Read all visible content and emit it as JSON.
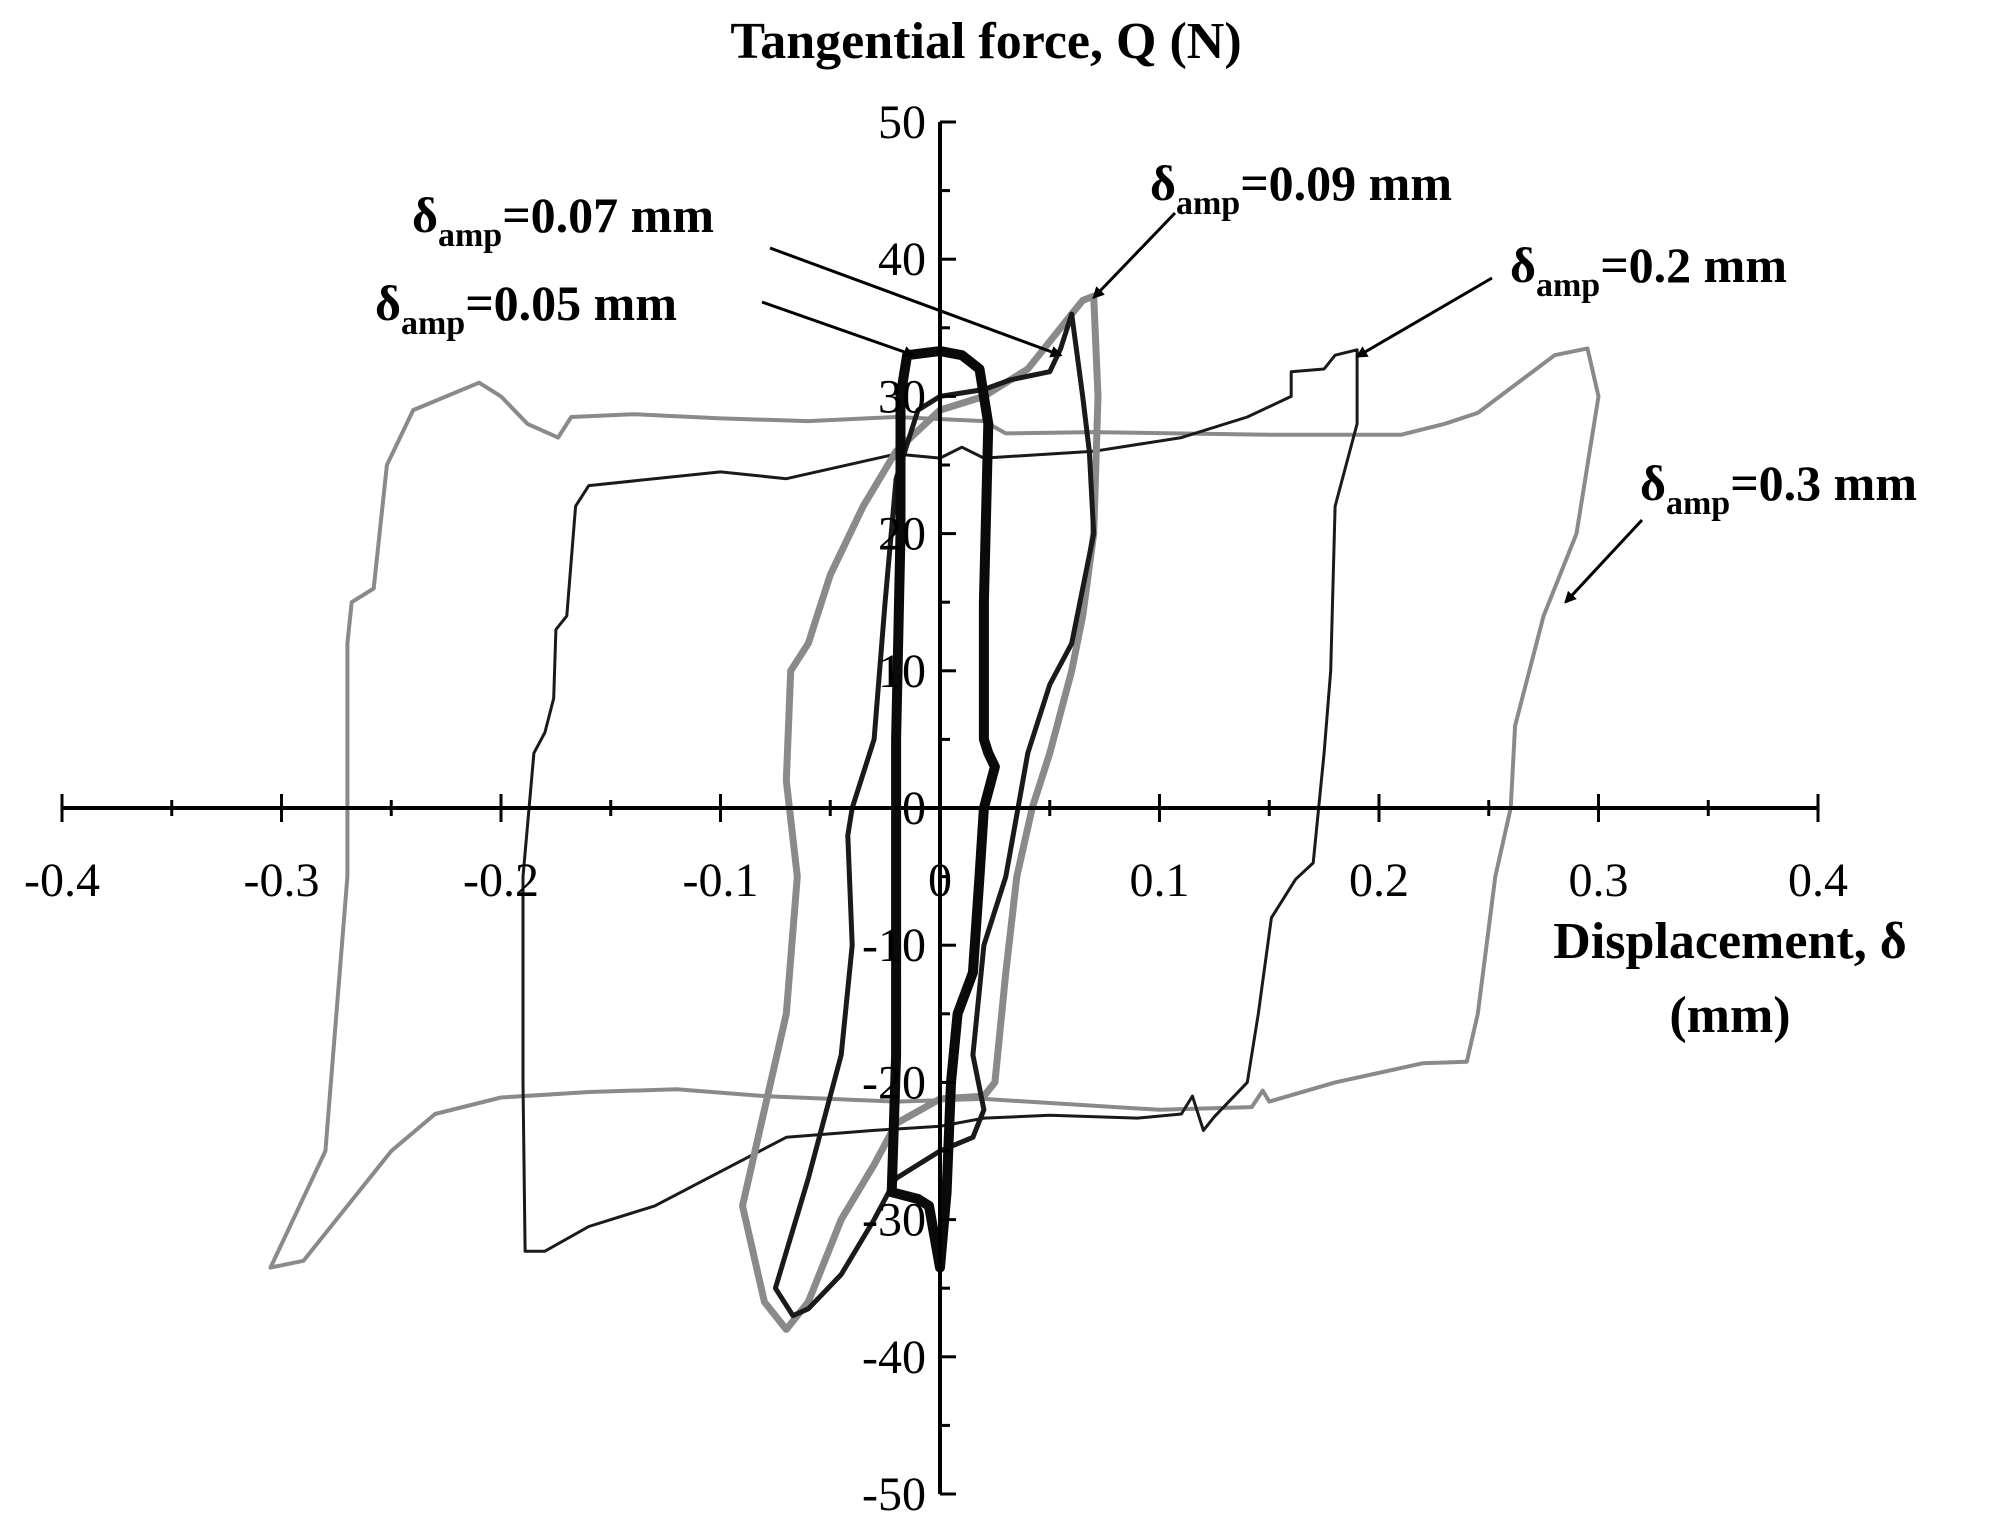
{
  "chart_data": {
    "type": "line",
    "title": "",
    "xlabel_line1": "Displacement, δ",
    "xlabel_line2": "(mm)",
    "ylabel": "Tangential force, Q (N)",
    "xlim": [
      -0.4,
      0.4
    ],
    "ylim": [
      -50,
      50
    ],
    "x_ticks": [
      -0.4,
      -0.3,
      -0.2,
      -0.1,
      0,
      0.1,
      0.2,
      0.3,
      0.4
    ],
    "x_tick_labels": [
      "-0.4",
      "-0.3",
      "-0.2",
      "-0.1",
      "0",
      "0.1",
      "0.2",
      "0.3",
      "0.4"
    ],
    "y_ticks": [
      -50,
      -40,
      -30,
      -20,
      -10,
      0,
      10,
      20,
      30,
      40,
      50
    ],
    "y_tick_labels": [
      "-50",
      "-40",
      "-30",
      "-20",
      "-10",
      "0",
      "10",
      "20",
      "30",
      "40",
      "50"
    ],
    "grid": false,
    "legend": "none",
    "series": [
      {
        "name": "δamp=0.3 mm",
        "color": "#8a8a8a",
        "points": [
          [
            -0.305,
            -33.5
          ],
          [
            -0.28,
            -25
          ],
          [
            -0.27,
            -5
          ],
          [
            -0.27,
            12
          ],
          [
            -0.268,
            15
          ],
          [
            -0.258,
            16
          ],
          [
            -0.252,
            25
          ],
          [
            -0.24,
            29
          ],
          [
            -0.21,
            31
          ],
          [
            -0.2,
            30
          ],
          [
            -0.188,
            28
          ],
          [
            -0.174,
            27
          ],
          [
            -0.168,
            28.5
          ],
          [
            -0.14,
            28.7
          ],
          [
            -0.1,
            28.4
          ],
          [
            -0.06,
            28.2
          ],
          [
            -0.02,
            28.5
          ],
          [
            0.02,
            28.2
          ],
          [
            0.03,
            27.3
          ],
          [
            0.07,
            27.4
          ],
          [
            0.15,
            27.2
          ],
          [
            0.21,
            27.2
          ],
          [
            0.23,
            28
          ],
          [
            0.245,
            28.8
          ],
          [
            0.28,
            33
          ],
          [
            0.295,
            33.5
          ],
          [
            0.3,
            30
          ],
          [
            0.29,
            20
          ],
          [
            0.275,
            14
          ],
          [
            0.262,
            6
          ],
          [
            0.26,
            0
          ],
          [
            0.253,
            -5
          ],
          [
            0.245,
            -15
          ],
          [
            0.24,
            -18.5
          ],
          [
            0.22,
            -18.6
          ],
          [
            0.18,
            -20
          ],
          [
            0.15,
            -21.4
          ],
          [
            0.147,
            -20.6
          ],
          [
            0.142,
            -21.8
          ],
          [
            0.1,
            -22
          ],
          [
            0.05,
            -21.5
          ],
          [
            0.02,
            -21.2
          ],
          [
            -0.02,
            -21.4
          ],
          [
            -0.05,
            -21.2
          ],
          [
            -0.08,
            -21.0
          ],
          [
            -0.12,
            -20.5
          ],
          [
            -0.16,
            -20.7
          ],
          [
            -0.2,
            -21.1
          ],
          [
            -0.23,
            -22.3
          ],
          [
            -0.25,
            -25
          ],
          [
            -0.27,
            -29
          ],
          [
            -0.29,
            -33
          ],
          [
            -0.305,
            -33.5
          ]
        ]
      },
      {
        "name": "δamp=0.2 mm",
        "color": "#1a1a1a",
        "points": [
          [
            -0.189,
            -32.3
          ],
          [
            -0.19,
            -20
          ],
          [
            -0.19,
            -5
          ],
          [
            -0.185,
            4
          ],
          [
            -0.18,
            5.5
          ],
          [
            -0.176,
            8
          ],
          [
            -0.175,
            13
          ],
          [
            -0.17,
            14
          ],
          [
            -0.168,
            18
          ],
          [
            -0.166,
            22
          ],
          [
            -0.16,
            23.5
          ],
          [
            -0.1,
            24.5
          ],
          [
            -0.07,
            24
          ],
          [
            -0.02,
            25.8
          ],
          [
            0.0,
            25.5
          ],
          [
            0.01,
            26.3
          ],
          [
            0.02,
            25.5
          ],
          [
            0.07,
            26
          ],
          [
            0.11,
            27
          ],
          [
            0.14,
            28.5
          ],
          [
            0.16,
            30
          ],
          [
            0.16,
            31.8
          ],
          [
            0.175,
            32
          ],
          [
            0.18,
            33
          ],
          [
            0.19,
            33.4
          ],
          [
            0.19,
            32
          ],
          [
            0.19,
            28
          ],
          [
            0.18,
            22
          ],
          [
            0.178,
            10
          ],
          [
            0.175,
            4
          ],
          [
            0.17,
            -4
          ],
          [
            0.162,
            -5.2
          ],
          [
            0.151,
            -8
          ],
          [
            0.145,
            -15
          ],
          [
            0.14,
            -20
          ],
          [
            0.125,
            -22.5
          ],
          [
            0.12,
            -23.5
          ],
          [
            0.115,
            -21
          ],
          [
            0.11,
            -22.3
          ],
          [
            0.09,
            -22.6
          ],
          [
            0.05,
            -22.4
          ],
          [
            0.02,
            -22.6
          ],
          [
            0.0,
            -23.2
          ],
          [
            -0.03,
            -23.5
          ],
          [
            -0.07,
            -24
          ],
          [
            -0.1,
            -26.5
          ],
          [
            -0.13,
            -29
          ],
          [
            -0.16,
            -30.5
          ],
          [
            -0.18,
            -32.3
          ],
          [
            -0.189,
            -32.3
          ]
        ]
      },
      {
        "name": "δamp=0.09 mm",
        "color": "#8a8a8a",
        "points": [
          [
            -0.07,
            -38
          ],
          [
            -0.08,
            -36
          ],
          [
            -0.09,
            -29
          ],
          [
            -0.07,
            -15
          ],
          [
            -0.065,
            -5
          ],
          [
            -0.07,
            2
          ],
          [
            -0.068,
            10
          ],
          [
            -0.06,
            12
          ],
          [
            -0.05,
            17
          ],
          [
            -0.035,
            22
          ],
          [
            -0.02,
            26
          ],
          [
            0.0,
            29
          ],
          [
            0.02,
            30
          ],
          [
            0.04,
            32
          ],
          [
            0.06,
            36
          ],
          [
            0.065,
            37
          ],
          [
            0.07,
            37.3
          ],
          [
            0.072,
            30
          ],
          [
            0.07,
            20
          ],
          [
            0.065,
            14
          ],
          [
            0.06,
            10
          ],
          [
            0.05,
            4
          ],
          [
            0.042,
            0
          ],
          [
            0.035,
            -5
          ],
          [
            0.03,
            -12
          ],
          [
            0.025,
            -20
          ],
          [
            0.02,
            -21
          ],
          [
            0.0,
            -21.2
          ],
          [
            -0.02,
            -23
          ],
          [
            -0.03,
            -26
          ],
          [
            -0.045,
            -30
          ],
          [
            -0.06,
            -36
          ],
          [
            -0.07,
            -38
          ]
        ]
      },
      {
        "name": "δamp=0.07 mm",
        "color": "#1a1a1a",
        "points": [
          [
            -0.067,
            -37
          ],
          [
            -0.075,
            -35
          ],
          [
            -0.06,
            -27
          ],
          [
            -0.045,
            -18
          ],
          [
            -0.04,
            -10
          ],
          [
            -0.042,
            -2
          ],
          [
            -0.04,
            0
          ],
          [
            -0.03,
            5
          ],
          [
            -0.025,
            15
          ],
          [
            -0.02,
            24
          ],
          [
            -0.01,
            29
          ],
          [
            0.0,
            30
          ],
          [
            0.02,
            30.5
          ],
          [
            0.032,
            31.2
          ],
          [
            0.05,
            31.8
          ],
          [
            0.055,
            33.5
          ],
          [
            0.06,
            36
          ],
          [
            0.065,
            30
          ],
          [
            0.068,
            26
          ],
          [
            0.07,
            20
          ],
          [
            0.065,
            16
          ],
          [
            0.06,
            12
          ],
          [
            0.05,
            9
          ],
          [
            0.04,
            4
          ],
          [
            0.03,
            -5
          ],
          [
            0.02,
            -10
          ],
          [
            0.015,
            -18
          ],
          [
            0.02,
            -22
          ],
          [
            0.015,
            -24
          ],
          [
            0.0,
            -25
          ],
          [
            -0.02,
            -27
          ],
          [
            -0.03,
            -30
          ],
          [
            -0.045,
            -34
          ],
          [
            -0.06,
            -36.5
          ],
          [
            -0.067,
            -37
          ]
        ]
      },
      {
        "name": "δamp=0.05 mm",
        "color": "#0a0a0a",
        "points": [
          [
            -0.022,
            -28
          ],
          [
            -0.02,
            -18
          ],
          [
            -0.02,
            5
          ],
          [
            -0.018,
            20
          ],
          [
            -0.018,
            30
          ],
          [
            -0.015,
            33
          ],
          [
            0.0,
            33.3
          ],
          [
            0.01,
            33
          ],
          [
            0.018,
            32
          ],
          [
            0.022,
            28
          ],
          [
            0.02,
            15
          ],
          [
            0.02,
            5
          ],
          [
            0.022,
            4
          ],
          [
            0.025,
            3
          ],
          [
            0.02,
            0
          ],
          [
            0.018,
            -5
          ],
          [
            0.015,
            -12
          ],
          [
            0.008,
            -15
          ],
          [
            0.005,
            -20
          ],
          [
            0.003,
            -28
          ],
          [
            0.0,
            -33.5
          ],
          [
            -0.005,
            -29
          ],
          [
            -0.01,
            -28.5
          ],
          [
            -0.022,
            -28
          ]
        ]
      }
    ],
    "annotations": [
      {
        "text": "δ",
        "sub": "amp",
        "rest": "=0.07 mm",
        "point": [
          0.055,
          33
        ]
      },
      {
        "text": "δ",
        "sub": "amp",
        "rest": "=0.09 mm",
        "point": [
          0.07,
          37.2
        ]
      },
      {
        "text": "δ",
        "sub": "amp",
        "rest": "=0.05 mm",
        "point": [
          -0.012,
          33
        ]
      },
      {
        "text": "δ",
        "sub": "amp",
        "rest": "=0.2 mm",
        "point": [
          0.19,
          32.9
        ]
      },
      {
        "text": "δ",
        "sub": "amp",
        "rest": "=0.3 mm",
        "point": [
          0.285,
          15
        ]
      }
    ]
  }
}
